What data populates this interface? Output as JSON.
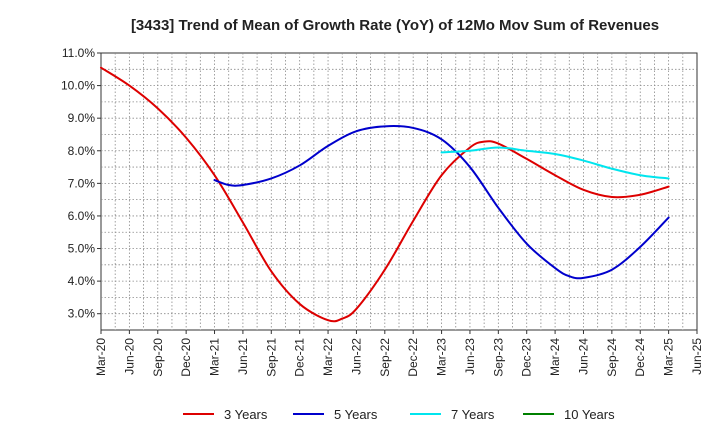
{
  "chart_data": {
    "type": "line",
    "title": "[3433]  Trend of Mean of Growth Rate (YoY) of 12Mo Mov Sum of Revenues",
    "xlabel": "",
    "ylabel": "",
    "ylim": [
      2.5,
      11.0
    ],
    "yticks": [
      3.0,
      4.0,
      5.0,
      6.0,
      7.0,
      8.0,
      9.0,
      10.0,
      11.0
    ],
    "ytick_labels": [
      "3.0%",
      "4.0%",
      "5.0%",
      "6.0%",
      "7.0%",
      "8.0%",
      "9.0%",
      "10.0%",
      "11.0%"
    ],
    "categories": [
      "Mar-20",
      "Jun-20",
      "Sep-20",
      "Dec-20",
      "Mar-21",
      "Jun-21",
      "Sep-21",
      "Dec-21",
      "Mar-22",
      "Jun-22",
      "Sep-22",
      "Dec-22",
      "Mar-23",
      "Jun-23",
      "Sep-23",
      "Dec-23",
      "Mar-24",
      "Jun-24",
      "Sep-24",
      "Dec-24",
      "Mar-25",
      "Jun-25"
    ],
    "grid": true,
    "legend_position": "bottom",
    "series": [
      {
        "name": "3 Years",
        "color": "#dd0000",
        "x": [
          0,
          1,
          2,
          3,
          4,
          5,
          6,
          7,
          8,
          8.5,
          9,
          10,
          11,
          12,
          13,
          13.5,
          14,
          15,
          16,
          17,
          18,
          19,
          20
        ],
        "values": [
          10.55,
          10.0,
          9.3,
          8.4,
          7.25,
          5.8,
          4.3,
          3.3,
          2.8,
          2.85,
          3.15,
          4.35,
          5.85,
          7.25,
          8.1,
          8.28,
          8.22,
          7.75,
          7.25,
          6.8,
          6.58,
          6.65,
          6.9
        ]
      },
      {
        "name": "5 Years",
        "color": "#0000cc",
        "x": [
          4,
          4.5,
          5,
          6,
          7,
          8,
          9,
          10,
          11,
          12,
          13,
          14,
          15,
          16,
          16.5,
          17,
          18,
          19,
          20
        ],
        "values": [
          7.1,
          6.95,
          6.95,
          7.15,
          7.55,
          8.15,
          8.6,
          8.75,
          8.7,
          8.35,
          7.5,
          6.25,
          5.15,
          4.4,
          4.15,
          4.1,
          4.35,
          5.05,
          5.95
        ]
      },
      {
        "name": "7 Years",
        "color": "#00e5ee",
        "x": [
          12,
          13,
          14,
          15,
          16,
          17,
          18,
          19,
          20
        ],
        "values": [
          7.95,
          8.0,
          8.1,
          8.0,
          7.9,
          7.7,
          7.45,
          7.25,
          7.15
        ]
      },
      {
        "name": "10 Years",
        "color": "#008000",
        "x": [],
        "values": []
      }
    ]
  }
}
